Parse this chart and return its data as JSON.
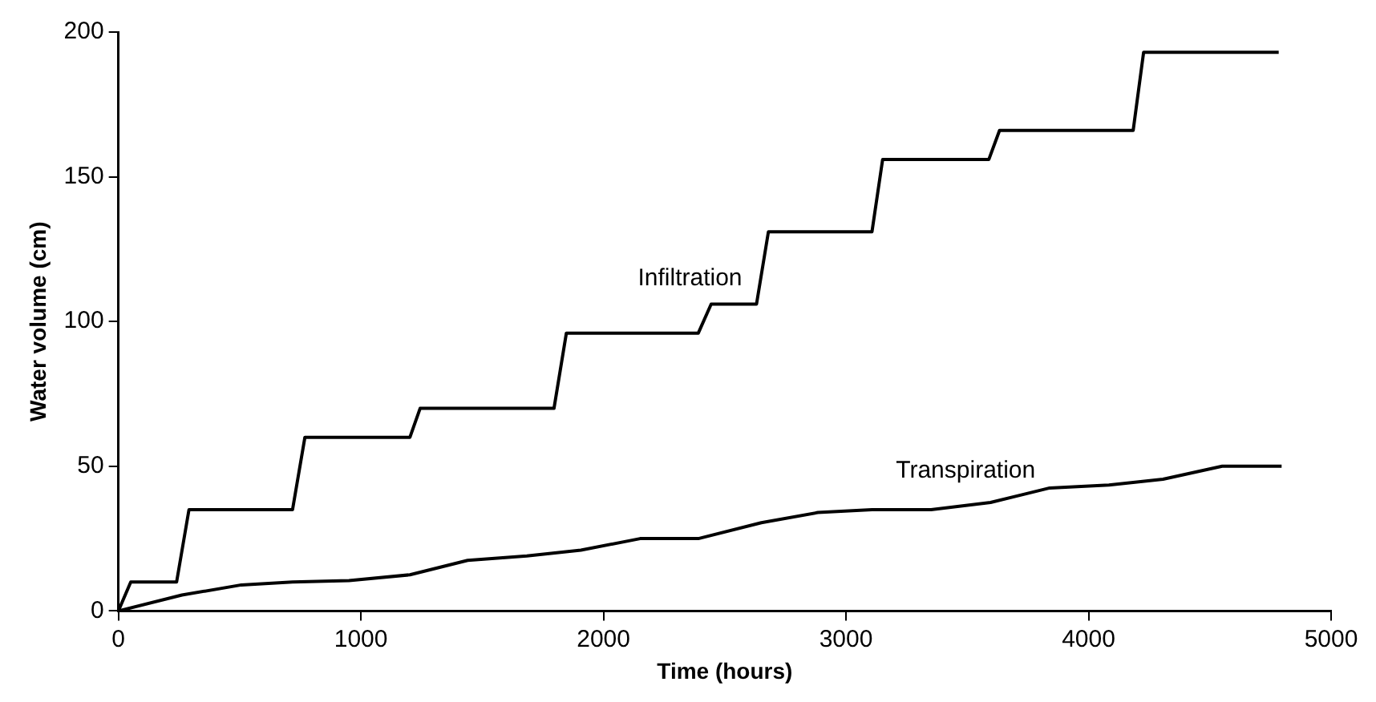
{
  "chart_data": {
    "type": "line",
    "xlabel": "Time (hours)",
    "ylabel": "Water volume (cm)",
    "xlim": [
      0,
      5000
    ],
    "xticks": [
      0,
      1000,
      2000,
      3000,
      4000,
      5000
    ],
    "ylim": [
      0,
      200
    ],
    "yticks": [
      0,
      50,
      100,
      150,
      200
    ],
    "grid": false,
    "legend": false,
    "marker": "none",
    "line_style": "solid",
    "series": [
      {
        "name": "Infiltration",
        "color": "#000000",
        "x": [
          0,
          51,
          240,
          291,
          718,
          769,
          1202,
          1244,
          1796,
          1847,
          2391,
          2444,
          2631,
          2680,
          3107,
          3151,
          3589,
          3633,
          4184,
          4227,
          4784
        ],
        "values": [
          0,
          10,
          10,
          35,
          35,
          60,
          60,
          70,
          70,
          96,
          96,
          106,
          106,
          131,
          131,
          156,
          156,
          166,
          166,
          193,
          193
        ]
      },
      {
        "name": "Transpiration",
        "color": "#000000",
        "x": [
          0,
          262,
          507,
          718,
          951,
          1202,
          1440,
          1684,
          1907,
          2151,
          2391,
          2651,
          2884,
          3107,
          3351,
          3596,
          3840,
          4084,
          4307,
          4551,
          4796
        ],
        "values": [
          0,
          5.5,
          9,
          10,
          10.5,
          12.5,
          17.5,
          19,
          21,
          25,
          25,
          30.5,
          34,
          35,
          35,
          37.5,
          42.5,
          43.5,
          45.5,
          50,
          50
        ]
      }
    ]
  }
}
